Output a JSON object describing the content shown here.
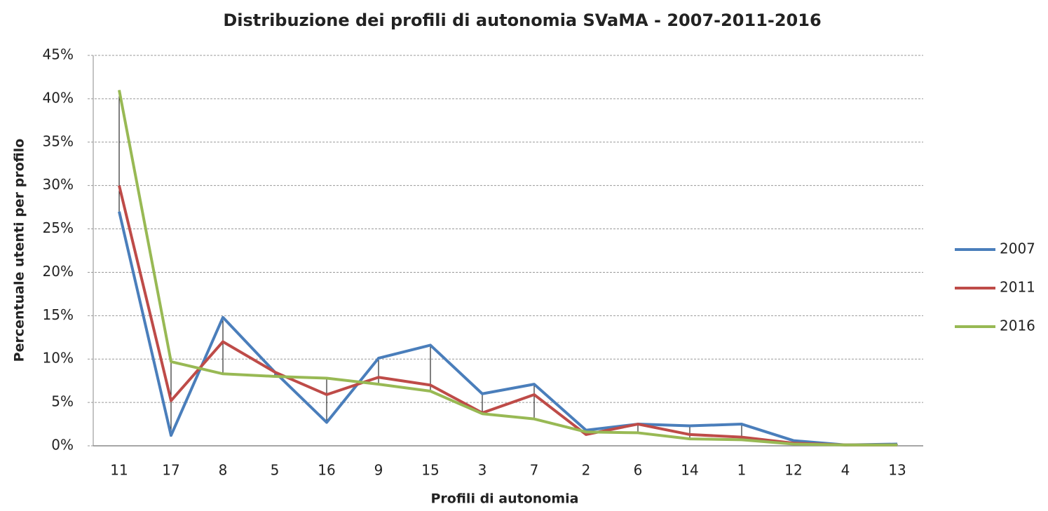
{
  "chart_data": {
    "type": "line",
    "title": "Distribuzione dei profili di autonomia SVaMA - 2007-2011-2016",
    "x_label": "Profili di autonomia",
    "y_label": "Percentuale utenti per profilo",
    "categories": [
      "11",
      "17",
      "8",
      "5",
      "16",
      "9",
      "15",
      "3",
      "7",
      "2",
      "6",
      "14",
      "1",
      "12",
      "4",
      "13"
    ],
    "series": [
      {
        "name": "2007",
        "color": "#4a7ebb",
        "values": [
          27,
          1.2,
          14.8,
          8.5,
          2.7,
          10.1,
          11.6,
          6.0,
          7.1,
          1.8,
          2.5,
          2.3,
          2.5,
          0.6,
          0.1,
          0.2
        ]
      },
      {
        "name": "2011",
        "color": "#be4b48",
        "values": [
          30,
          5.2,
          12,
          8.5,
          5.9,
          7.9,
          7.0,
          3.8,
          5.9,
          1.3,
          2.5,
          1.3,
          1.0,
          0.3,
          0.1,
          0.1
        ]
      },
      {
        "name": "2016",
        "color": "#98b954",
        "values": [
          41,
          9.7,
          8.3,
          8.0,
          7.8,
          7.1,
          6.3,
          3.7,
          3.1,
          1.6,
          1.5,
          0.8,
          0.7,
          0.2,
          0.1,
          0.1
        ]
      }
    ],
    "ylim": [
      0,
      45
    ],
    "yticks": [
      {
        "value": 0,
        "label": "0%"
      },
      {
        "value": 5,
        "label": "5%"
      },
      {
        "value": 10,
        "label": "10%"
      },
      {
        "value": 15,
        "label": "15%"
      },
      {
        "value": 20,
        "label": "20%"
      },
      {
        "value": 25,
        "label": "25%"
      },
      {
        "value": 30,
        "label": "30%"
      },
      {
        "value": 35,
        "label": "35%"
      },
      {
        "value": 40,
        "label": "40%"
      },
      {
        "value": 45,
        "label": "45%"
      }
    ],
    "grid": true,
    "high_low_lines": true,
    "legend": "right"
  }
}
